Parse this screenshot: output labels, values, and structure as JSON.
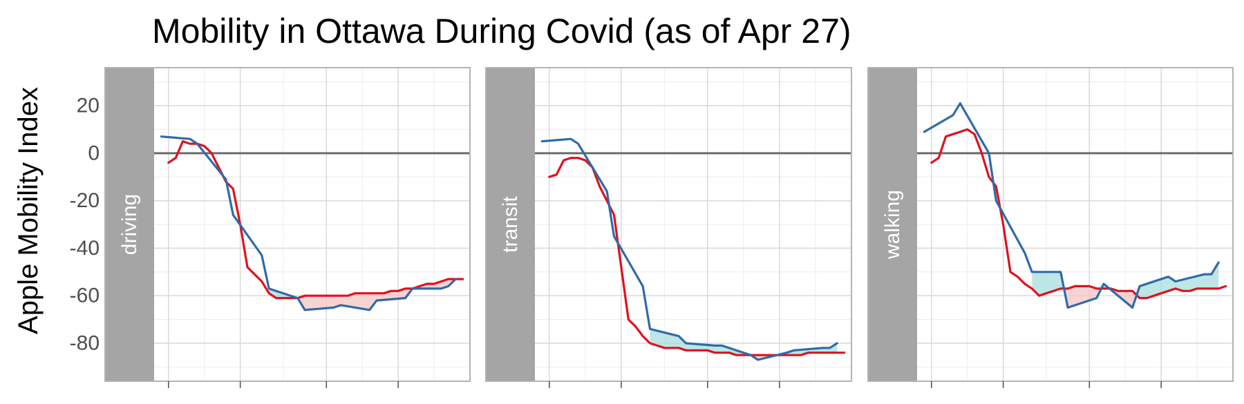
{
  "chart_data": {
    "type": "line",
    "title": "Mobility in Ottawa During Covid (as of Apr 27)",
    "ylabel": "Apple Mobility Index",
    "xlabel": "",
    "ylim": [
      -96,
      36
    ],
    "xlim": [
      -1,
      43
    ],
    "y_ticks": [
      20,
      0,
      -20,
      -40,
      -60,
      -80
    ],
    "y_tick_labels": [
      "20",
      "0",
      "-20",
      "-40",
      "-60",
      "-80"
    ],
    "x_ticks": [
      1,
      11,
      23,
      33
    ],
    "grid": true,
    "zero_line": 0,
    "facet_labels": [
      "driving",
      "transit",
      "walking"
    ],
    "colors": {
      "red_series": "#e0101c",
      "blue_series": "#2f6aa8",
      "zero_line": "#6a6a6a",
      "strip_fill": "#a5a5a5",
      "ribbon_blue_above": "#a8dede",
      "ribbon_red_above": "#f6c4c4",
      "grid_major": "#d9d9d9",
      "grid_minor": "#ececec",
      "panel_border": "#b3b3b3"
    },
    "facets": [
      {
        "label": "driving",
        "red_x": [
          1,
          2,
          3,
          4,
          5,
          6,
          7,
          8,
          9,
          10,
          11,
          12,
          13,
          14,
          15,
          16,
          17,
          18,
          19,
          20,
          21,
          22,
          23,
          24,
          25,
          26,
          27,
          28,
          29,
          30,
          31,
          32,
          33,
          34,
          35,
          36,
          37,
          38,
          39,
          40,
          41,
          42
        ],
        "red_y": [
          -4,
          -2,
          5,
          4,
          4,
          3,
          0,
          -6,
          -12,
          -15,
          -30,
          -48,
          -51,
          -54,
          -59,
          -61,
          -61,
          -61,
          -61,
          -60,
          -60,
          -60,
          -60,
          -60,
          -60,
          -60,
          -59,
          -59,
          -59,
          -59,
          -59,
          -58,
          -58,
          -57,
          -57,
          -56,
          -55,
          -55,
          -54,
          -53,
          -53,
          -53
        ],
        "blue_x": [
          0,
          4,
          5,
          9,
          10,
          14,
          15,
          19,
          20,
          24,
          25,
          29,
          30,
          34,
          35,
          39,
          40,
          41
        ],
        "blue_y": [
          7,
          6,
          4,
          -11,
          -26,
          -43,
          -57,
          -61,
          -66,
          -65,
          -64,
          -66,
          -62,
          -61,
          -57,
          -57,
          -56,
          -53
        ]
      },
      {
        "label": "transit",
        "red_x": [
          1,
          2,
          3,
          4,
          5,
          6,
          7,
          8,
          9,
          10,
          11,
          12,
          13,
          14,
          15,
          16,
          17,
          18,
          19,
          20,
          21,
          22,
          23,
          24,
          25,
          26,
          27,
          28,
          29,
          30,
          31,
          32,
          33,
          34,
          35,
          36,
          37,
          38,
          39,
          40,
          41,
          42
        ],
        "red_y": [
          -10,
          -9,
          -3,
          -2,
          -2,
          -3,
          -6,
          -14,
          -20,
          -26,
          -48,
          -70,
          -73,
          -77,
          -80,
          -81,
          -82,
          -82,
          -82,
          -83,
          -83,
          -83,
          -83,
          -84,
          -84,
          -84,
          -85,
          -85,
          -85,
          -85,
          -85,
          -85,
          -85,
          -85,
          -85,
          -85,
          -84,
          -84,
          -84,
          -84,
          -84,
          -84
        ],
        "blue_x": [
          0,
          4,
          5,
          9,
          10,
          14,
          15,
          19,
          20,
          24,
          25,
          29,
          30,
          34,
          35,
          39,
          40,
          41
        ],
        "blue_y": [
          5,
          6,
          4,
          -16,
          -35,
          -56,
          -74,
          -77,
          -80,
          -81,
          -81,
          -85,
          -87,
          -84,
          -83,
          -82,
          -82,
          -80
        ]
      },
      {
        "label": "walking",
        "red_x": [
          1,
          2,
          3,
          4,
          5,
          6,
          7,
          8,
          9,
          10,
          11,
          12,
          13,
          14,
          15,
          16,
          17,
          18,
          19,
          20,
          21,
          22,
          23,
          24,
          25,
          26,
          27,
          28,
          29,
          30,
          31,
          32,
          33,
          34,
          35,
          36,
          37,
          38,
          39,
          40,
          41,
          42
        ],
        "red_y": [
          -4,
          -2,
          7,
          8,
          9,
          10,
          8,
          0,
          -10,
          -14,
          -30,
          -50,
          -52,
          -55,
          -57,
          -60,
          -59,
          -58,
          -57,
          -57,
          -56,
          -56,
          -56,
          -57,
          -57,
          -57,
          -58,
          -58,
          -58,
          -61,
          -61,
          -60,
          -59,
          -58,
          -57,
          -58,
          -58,
          -57,
          -57,
          -57,
          -57,
          -56
        ],
        "blue_x": [
          0,
          4,
          5,
          9,
          10,
          14,
          15,
          19,
          20,
          24,
          25,
          29,
          30,
          34,
          35,
          39,
          40,
          41
        ],
        "blue_y": [
          9,
          16,
          21,
          0,
          -20,
          -42,
          -50,
          -50,
          -65,
          -61,
          -55,
          -65,
          -56,
          -52,
          -54,
          -51,
          -51,
          -46
        ]
      }
    ]
  }
}
